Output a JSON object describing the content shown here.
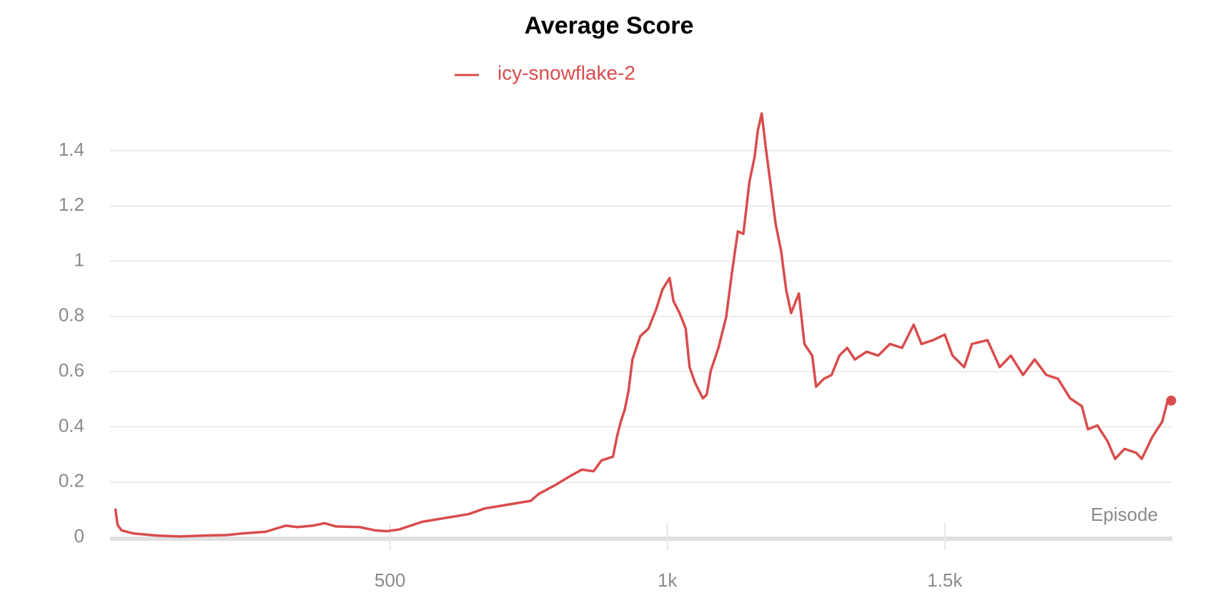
{
  "chart_data": {
    "type": "line",
    "title": "Average Score",
    "xlabel": "Episode",
    "x": [
      5,
      9,
      16,
      37,
      80,
      122,
      164,
      206,
      234,
      276,
      312,
      333,
      361,
      382,
      403,
      445,
      473,
      494,
      516,
      558,
      600,
      642,
      670,
      712,
      754,
      768,
      797,
      825,
      846,
      867,
      881,
      902,
      909,
      916,
      923,
      930,
      937,
      951,
      966,
      980,
      991,
      1004,
      1011,
      1022,
      1033,
      1040,
      1050,
      1064,
      1071,
      1078,
      1092,
      1106,
      1116,
      1127,
      1137,
      1148,
      1157,
      1163,
      1170,
      1177,
      1187,
      1195,
      1205,
      1214,
      1223,
      1237,
      1247,
      1261,
      1268,
      1282,
      1296,
      1310,
      1324,
      1338,
      1359,
      1380,
      1401,
      1423,
      1444,
      1458,
      1479,
      1500,
      1514,
      1535,
      1549,
      1577,
      1599,
      1619,
      1641,
      1662,
      1683,
      1704,
      1726,
      1747,
      1758,
      1775,
      1793,
      1807,
      1824,
      1845,
      1855,
      1874,
      1892,
      1902,
      1908
    ],
    "series": [
      {
        "name": "icy-snowflake-2",
        "color": "#d94c4c",
        "values": [
          0.104,
          0.045,
          0.025,
          0.014,
          0.006,
          0.003,
          0.006,
          0.008,
          0.014,
          0.02,
          0.042,
          0.037,
          0.042,
          0.051,
          0.039,
          0.037,
          0.025,
          0.022,
          0.028,
          0.056,
          0.07,
          0.084,
          0.104,
          0.118,
          0.132,
          0.157,
          0.188,
          0.222,
          0.245,
          0.239,
          0.278,
          0.292,
          0.363,
          0.419,
          0.461,
          0.531,
          0.644,
          0.728,
          0.756,
          0.827,
          0.897,
          0.939,
          0.855,
          0.812,
          0.756,
          0.616,
          0.559,
          0.503,
          0.517,
          0.602,
          0.686,
          0.798,
          0.953,
          1.108,
          1.099,
          1.29,
          1.375,
          1.473,
          1.535,
          1.417,
          1.262,
          1.136,
          1.037,
          0.897,
          0.812,
          0.883,
          0.7,
          0.658,
          0.545,
          0.574,
          0.588,
          0.658,
          0.686,
          0.644,
          0.672,
          0.658,
          0.7,
          0.686,
          0.77,
          0.7,
          0.714,
          0.734,
          0.658,
          0.616,
          0.7,
          0.714,
          0.616,
          0.658,
          0.588,
          0.644,
          0.588,
          0.574,
          0.503,
          0.475,
          0.391,
          0.405,
          0.349,
          0.284,
          0.32,
          0.306,
          0.284,
          0.363,
          0.419,
          0.498,
          0.495
        ]
      }
    ],
    "xlim": [
      -20,
      1910
    ],
    "ylim": [
      0,
      1.55
    ],
    "xticks": [
      500,
      {
        "value": 1000,
        "label": "1k"
      },
      {
        "value": 1500,
        "label": "1.5k"
      }
    ],
    "yticks": [
      0,
      0.2,
      0.4,
      0.6,
      0.8,
      1,
      1.2,
      1.4
    ],
    "grid": true
  }
}
